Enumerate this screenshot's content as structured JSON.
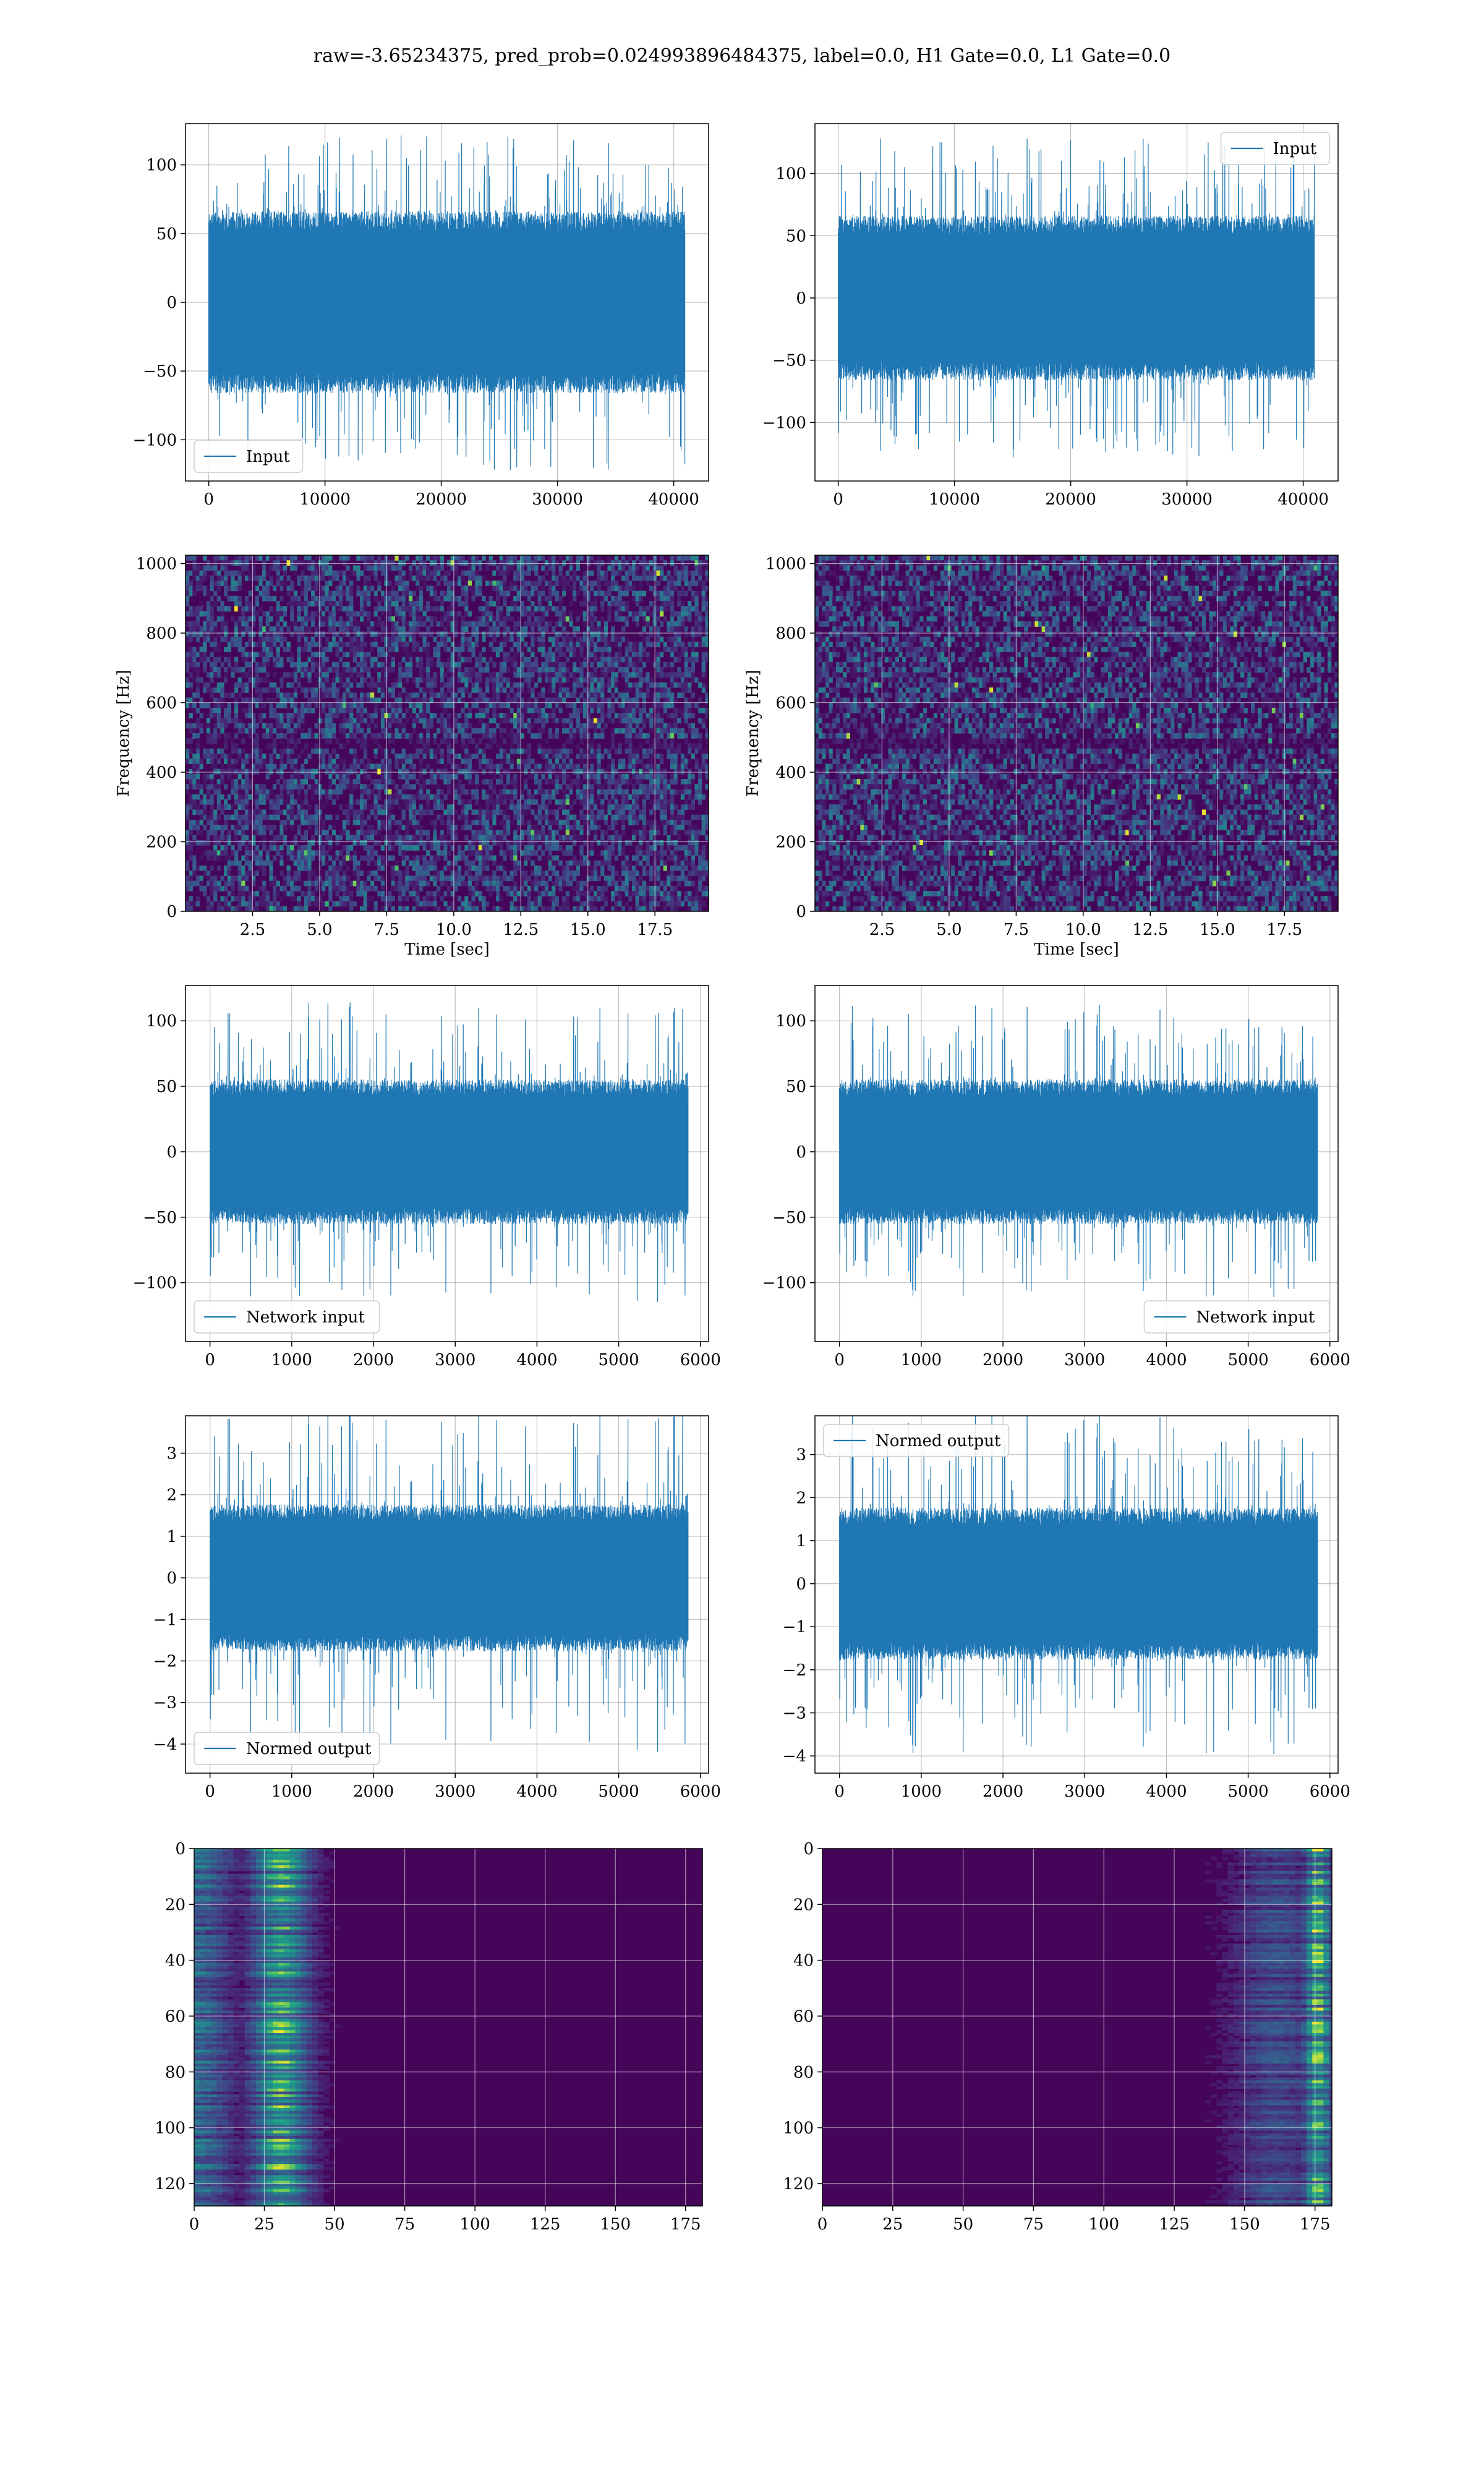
{
  "title": "raw=-3.65234375, pred_prob=0.024993896484375, label=0.0, H1 Gate=0.0, L1 Gate=0.0",
  "chart_data": [
    {
      "id": "p1",
      "type": "line",
      "row": 0,
      "col": 0,
      "series": [
        {
          "name": "Input",
          "amplitude_core": 60,
          "amplitude_peak": 122,
          "n_points": 40960
        }
      ],
      "legend": "lower-left",
      "xlim": [
        -2000,
        43000
      ],
      "ylim": [
        -130,
        130
      ],
      "xticks": [
        0,
        10000,
        20000,
        30000,
        40000
      ],
      "yticks": [
        -100,
        -50,
        0,
        50,
        100
      ],
      "grid": true,
      "seed": 11
    },
    {
      "id": "p2",
      "type": "line",
      "row": 0,
      "col": 1,
      "series": [
        {
          "name": "Input",
          "amplitude_core": 60,
          "amplitude_peak": 128,
          "n_points": 40960
        }
      ],
      "legend": "upper-right",
      "xlim": [
        -2000,
        43000
      ],
      "ylim": [
        -147,
        140
      ],
      "xticks": [
        0,
        10000,
        20000,
        30000,
        40000
      ],
      "yticks": [
        -100,
        -50,
        0,
        50,
        100
      ],
      "grid": true,
      "seed": 23
    },
    {
      "id": "p3",
      "type": "heatmap",
      "row": 1,
      "col": 0,
      "xlabel": "Time [sec]",
      "ylabel": "Frequency [Hz]",
      "xlim": [
        0,
        19.5
      ],
      "ylim": [
        0,
        1024
      ],
      "xticks": [
        2.5,
        5.0,
        7.5,
        10.0,
        12.5,
        15.0,
        17.5
      ],
      "yticks": [
        0,
        200,
        400,
        600,
        800,
        1000
      ],
      "colormap": "viridis",
      "grid": true,
      "seed": 5
    },
    {
      "id": "p4",
      "type": "heatmap",
      "row": 1,
      "col": 1,
      "xlabel": "Time [sec]",
      "ylabel": "Frequency [Hz]",
      "xlim": [
        0,
        19.5
      ],
      "ylim": [
        0,
        1024
      ],
      "xticks": [
        2.5,
        5.0,
        7.5,
        10.0,
        12.5,
        15.0,
        17.5
      ],
      "yticks": [
        0,
        200,
        400,
        600,
        800,
        1000
      ],
      "colormap": "viridis",
      "grid": true,
      "seed": 9
    },
    {
      "id": "p5",
      "type": "line",
      "row": 2,
      "col": 0,
      "series": [
        {
          "name": "Network input",
          "amplitude_core": 50,
          "amplitude_peak": 115,
          "n_points": 5850
        }
      ],
      "legend": "lower-left",
      "xlim": [
        -300,
        6100
      ],
      "ylim": [
        -145,
        127
      ],
      "xticks": [
        0,
        1000,
        2000,
        3000,
        4000,
        5000,
        6000
      ],
      "yticks": [
        -100,
        -50,
        0,
        50,
        100
      ],
      "grid": true,
      "seed": 31
    },
    {
      "id": "p6",
      "type": "line",
      "row": 2,
      "col": 1,
      "series": [
        {
          "name": "Network input",
          "amplitude_core": 50,
          "amplitude_peak": 112,
          "n_points": 5850
        }
      ],
      "legend": "lower-right",
      "xlim": [
        -300,
        6100
      ],
      "ylim": [
        -145,
        127
      ],
      "xticks": [
        0,
        1000,
        2000,
        3000,
        4000,
        5000,
        6000
      ],
      "yticks": [
        -100,
        -50,
        0,
        50,
        100
      ],
      "grid": true,
      "seed": 37
    },
    {
      "id": "p7",
      "type": "line",
      "row": 3,
      "col": 0,
      "series": [
        {
          "name": "Normed output",
          "amplitude_core": 1.6,
          "amplitude_peak": 4.2,
          "n_points": 5850
        }
      ],
      "legend": "lower-left",
      "xlim": [
        -300,
        6100
      ],
      "ylim": [
        -4.7,
        3.9
      ],
      "xticks": [
        0,
        1000,
        2000,
        3000,
        4000,
        5000,
        6000
      ],
      "yticks": [
        -4,
        -3,
        -2,
        -1,
        0,
        1,
        2,
        3
      ],
      "grid": true,
      "seed": 31
    },
    {
      "id": "p8",
      "type": "line",
      "row": 3,
      "col": 1,
      "series": [
        {
          "name": "Normed output",
          "amplitude_core": 1.6,
          "amplitude_peak": 4.0,
          "n_points": 5850
        }
      ],
      "legend": "upper-left",
      "xlim": [
        -300,
        6100
      ],
      "ylim": [
        -4.4,
        3.9
      ],
      "xticks": [
        0,
        1000,
        2000,
        3000,
        4000,
        5000,
        6000
      ],
      "yticks": [
        -4,
        -3,
        -2,
        -1,
        0,
        1,
        2,
        3
      ],
      "grid": true,
      "seed": 37
    },
    {
      "id": "p9",
      "type": "heatmap",
      "row": 4,
      "col": 0,
      "xlim": [
        0,
        181
      ],
      "ylim": [
        128,
        0
      ],
      "xticks": [
        0,
        25,
        50,
        75,
        100,
        125,
        150,
        175
      ],
      "yticks": [
        0,
        20,
        40,
        60,
        80,
        100,
        120
      ],
      "colormap": "viridis",
      "grid": true,
      "seed": 41,
      "feature": "left"
    },
    {
      "id": "p10",
      "type": "heatmap",
      "row": 4,
      "col": 1,
      "xlim": [
        0,
        181
      ],
      "ylim": [
        128,
        0
      ],
      "xticks": [
        0,
        25,
        50,
        75,
        100,
        125,
        150,
        175
      ],
      "yticks": [
        0,
        20,
        40,
        60,
        80,
        100,
        120
      ],
      "colormap": "viridis",
      "grid": true,
      "seed": 43,
      "feature": "right"
    }
  ]
}
